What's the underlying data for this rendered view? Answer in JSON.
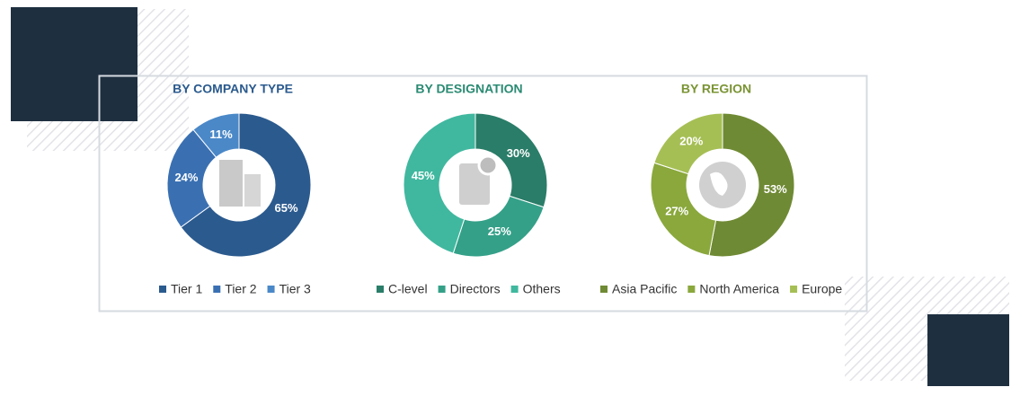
{
  "chart_data": [
    {
      "type": "pie",
      "title": "BY COMPANY TYPE",
      "title_color": "#2b5a8e",
      "categories": [
        "Tier 1",
        "Tier 2",
        "Tier 3"
      ],
      "values": [
        65,
        24,
        11
      ],
      "value_labels": [
        "65%",
        "24%",
        "11%"
      ],
      "colors": [
        "#2b5a8e",
        "#3a70b2",
        "#4b88c8"
      ]
    },
    {
      "type": "pie",
      "title": "BY DESIGNATION",
      "title_color": "#2a8a72",
      "categories": [
        "C-level",
        "Directors",
        "Others"
      ],
      "values": [
        30,
        25,
        45
      ],
      "value_labels": [
        "30%",
        "25%",
        "45%"
      ],
      "colors": [
        "#2a7d68",
        "#34a088",
        "#40b89f"
      ]
    },
    {
      "type": "pie",
      "title": "BY REGION",
      "title_color": "#7a9434",
      "categories": [
        "Asia Pacific",
        "North America",
        "Europe"
      ],
      "values": [
        53,
        27,
        20
      ],
      "value_labels": [
        "53%",
        "27%",
        "20%"
      ],
      "colors": [
        "#6f8a34",
        "#8aa83c",
        "#a6bf55"
      ]
    }
  ]
}
